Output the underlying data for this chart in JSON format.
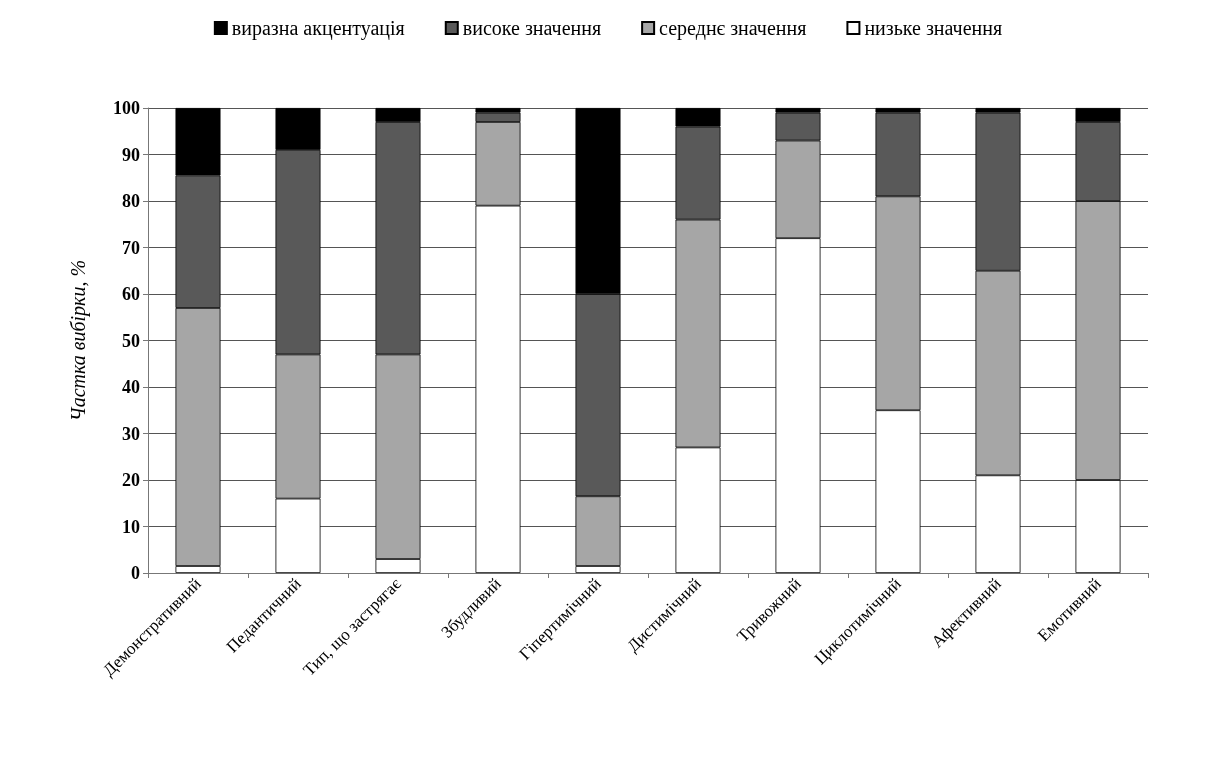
{
  "chart_data": {
    "type": "bar",
    "stacked": true,
    "ylabel": "Частка вибірки, %",
    "categories": [
      "Демонстративний",
      "Педантичний",
      "Тип, що застрягає",
      "Збудливий",
      "Гіпертимічний",
      "Дистимічний",
      "Тривожний",
      "Циклотимічний",
      "Афективний",
      "Емотивний"
    ],
    "series": [
      {
        "name": "низьке значення",
        "color": "#ffffff",
        "values": [
          1.5,
          16,
          3,
          79,
          1.5,
          27,
          72,
          35,
          21,
          20
        ]
      },
      {
        "name": "середнє значення",
        "color": "#a6a6a6",
        "values": [
          55.5,
          31,
          44,
          18,
          15,
          49,
          21,
          46,
          44,
          60
        ]
      },
      {
        "name": "високе значення",
        "color": "#595959",
        "values": [
          28.5,
          44,
          50,
          2,
          43.5,
          20,
          6,
          18,
          34,
          17
        ]
      },
      {
        "name": "виразна акцентуація",
        "color": "#000000",
        "values": [
          14.5,
          9,
          3,
          1,
          40,
          4,
          1,
          1,
          1,
          3
        ]
      }
    ],
    "ylim": [
      0,
      100
    ],
    "yticks": [
      0,
      10,
      20,
      30,
      40,
      50,
      60,
      70,
      80,
      90,
      100
    ],
    "grid": "y",
    "legend": "top"
  }
}
